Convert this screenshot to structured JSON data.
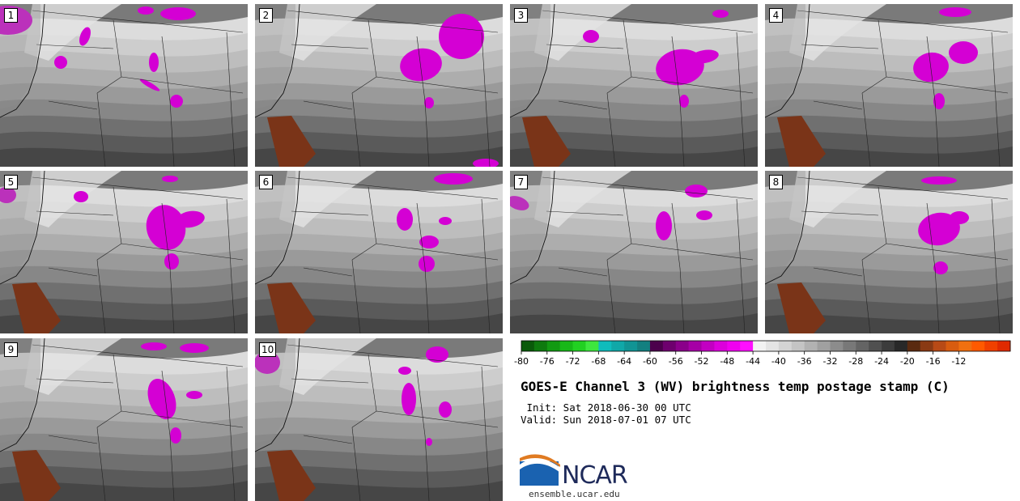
{
  "panels": [
    {
      "label": "1"
    },
    {
      "label": "2"
    },
    {
      "label": "3"
    },
    {
      "label": "4"
    },
    {
      "label": "5"
    },
    {
      "label": "6"
    },
    {
      "label": "7"
    },
    {
      "label": "8"
    },
    {
      "label": "9"
    },
    {
      "label": "10"
    }
  ],
  "colorbar": {
    "ticks": [
      "-80",
      "-76",
      "-72",
      "-68",
      "-64",
      "-60",
      "-56",
      "-52",
      "-48",
      "-44",
      "-40",
      "-36",
      "-32",
      "-28",
      "-24",
      "-20",
      "-16",
      "-12"
    ],
    "colors": [
      "#0a5a0a",
      "#0e7a0e",
      "#129a12",
      "#18b818",
      "#22d022",
      "#3ee63e",
      "#0fbcbc",
      "#10a8a8",
      "#119494",
      "#138080",
      "#4c004c",
      "#6e006e",
      "#8a008a",
      "#a600a6",
      "#c200c2",
      "#dc00dc",
      "#f000f0",
      "#ff10ff",
      "#f2f2f2",
      "#e4e4e4",
      "#d4d4d4",
      "#c4c4c4",
      "#b2b2b2",
      "#a0a0a0",
      "#8c8c8c",
      "#787878",
      "#646464",
      "#505050",
      "#3c3c3c",
      "#282828",
      "#5a2a10",
      "#8a3a14",
      "#b84a16",
      "#d85c10",
      "#f07010",
      "#ff5a00",
      "#f04000",
      "#e02a00"
    ]
  },
  "title": "GOES-E Channel 3 (WV) brightness temp postage stamp (C)",
  "init": " Init: Sat 2018-06-30 00 UTC",
  "valid": "Valid: Sun 2018-07-01 07 UTC",
  "logo": {
    "word": "NCAR",
    "url": "ensemble.ucar.edu"
  }
}
